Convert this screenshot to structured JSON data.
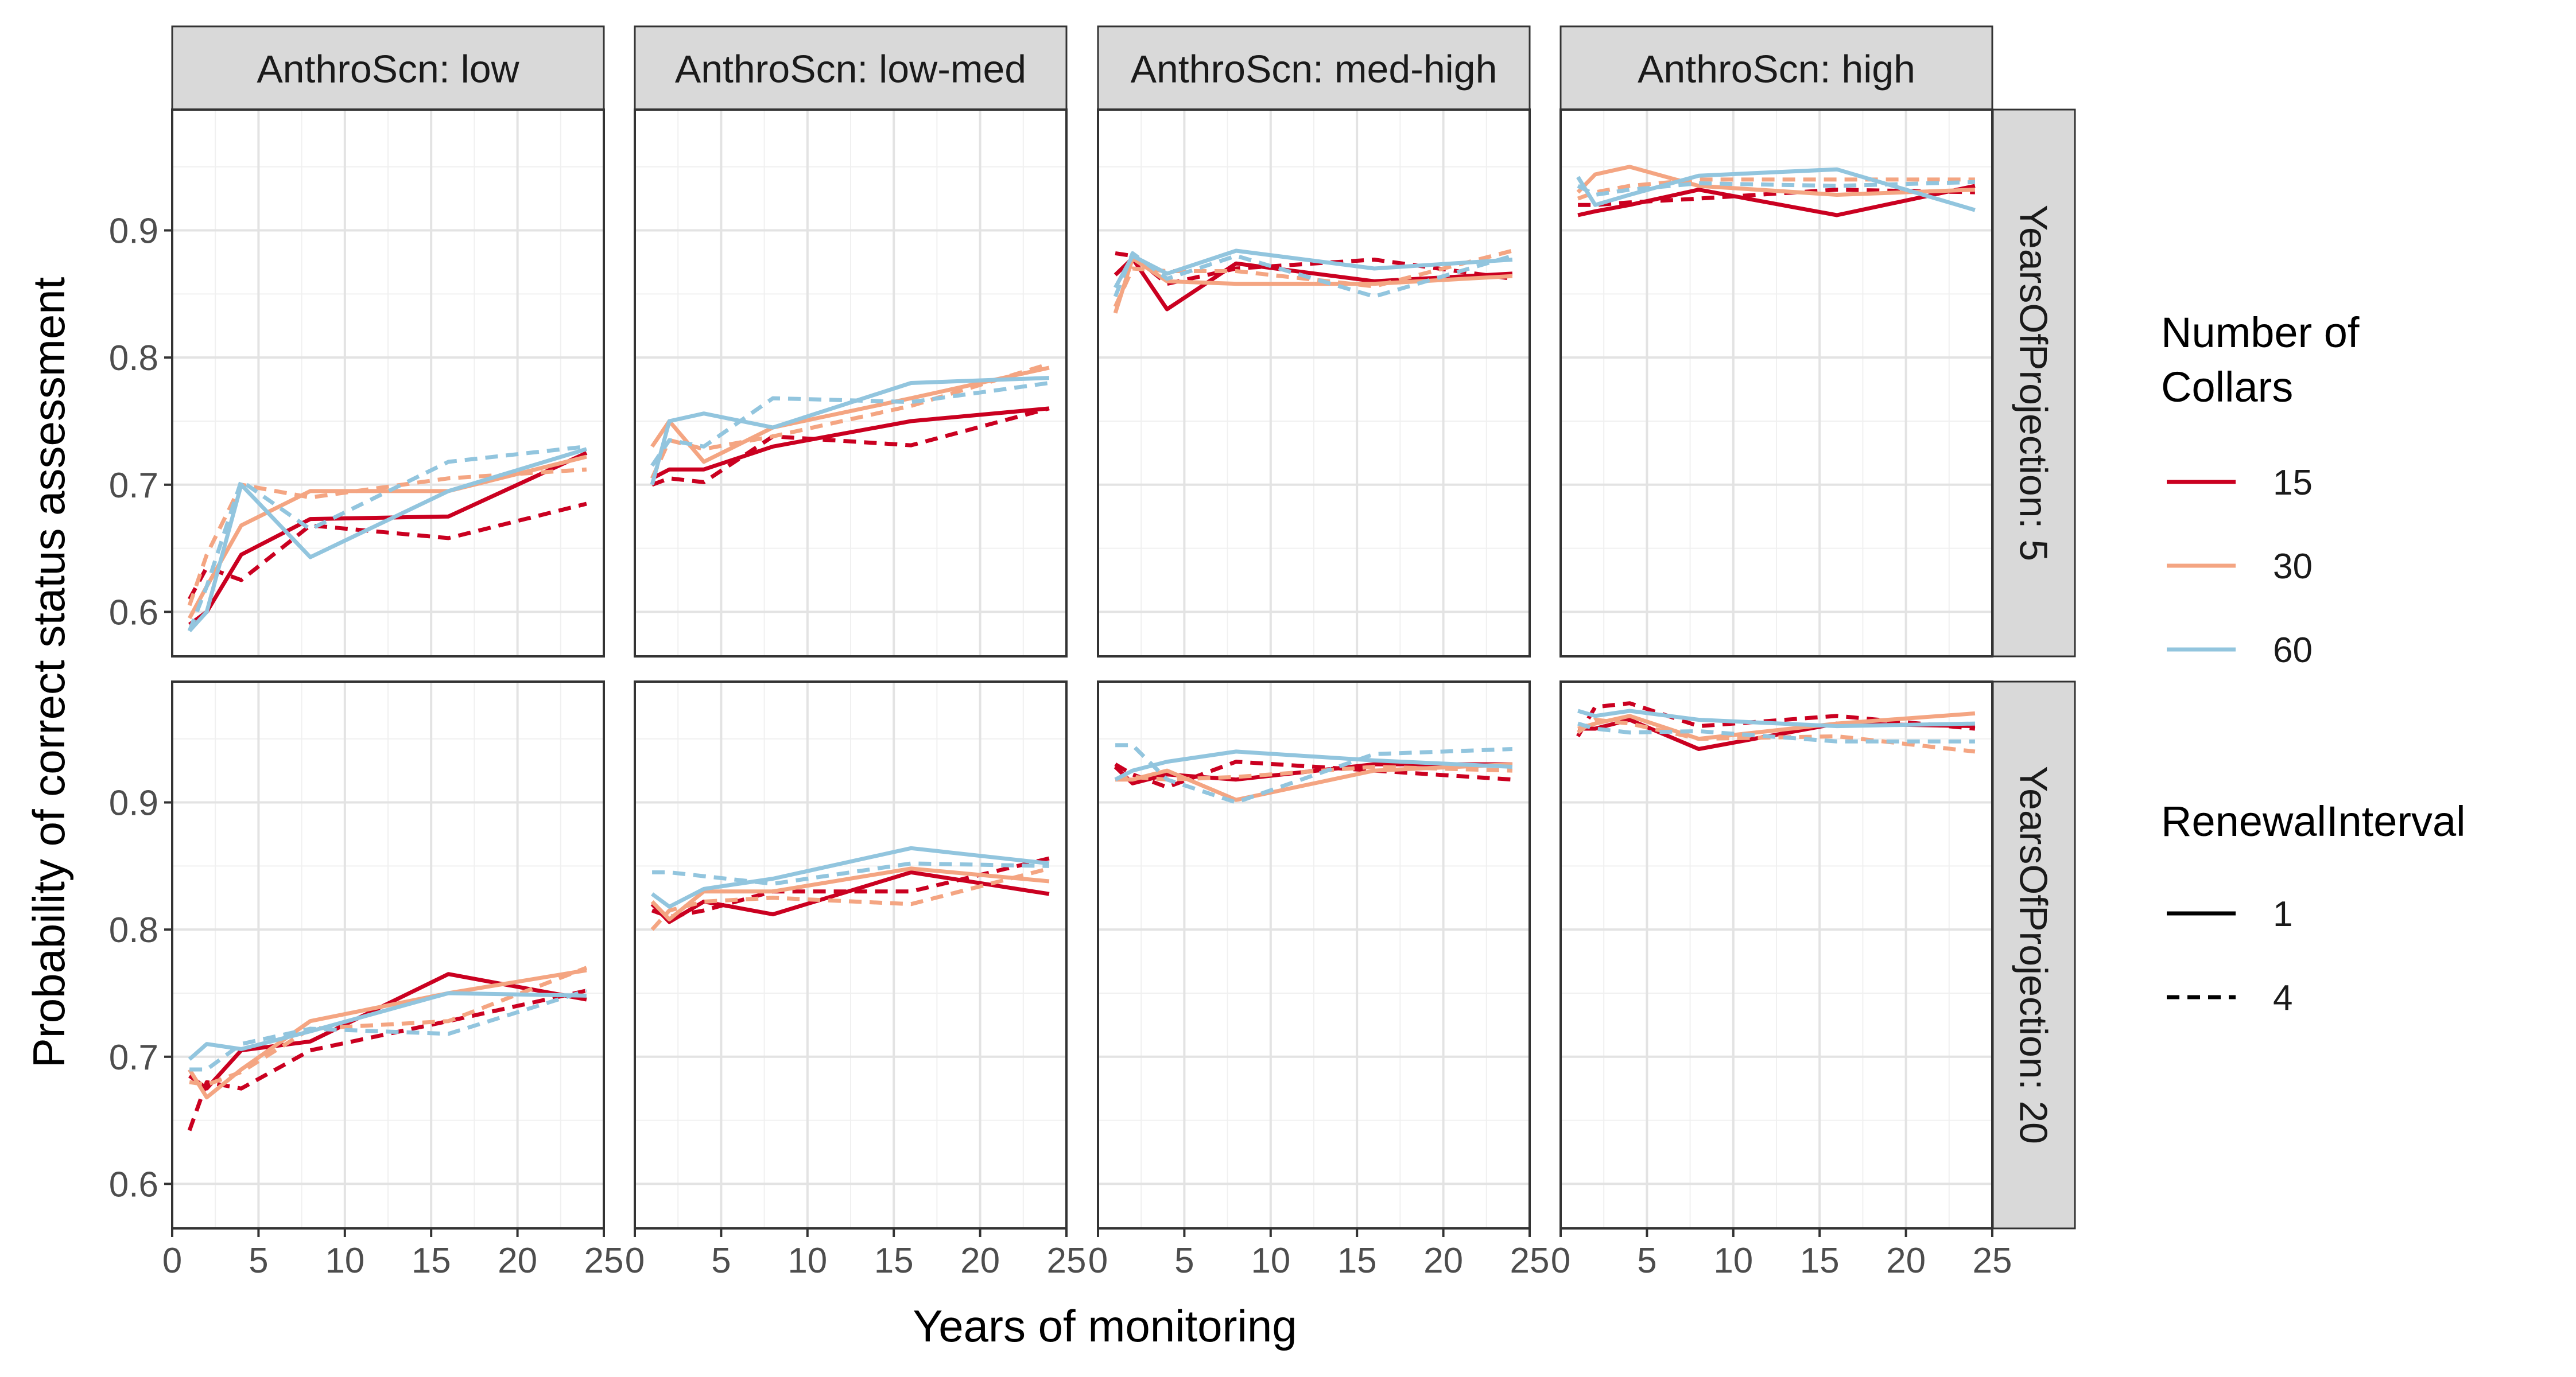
{
  "chart_data": {
    "type": "line",
    "layout": "facet-grid",
    "xlabel": "Years of monitoring",
    "ylabel": "Probability of correct status assessment",
    "x_ticks": [
      0,
      5,
      10,
      15,
      20,
      25
    ],
    "y_ticks": [
      0.6,
      0.7,
      0.8,
      0.9
    ],
    "xlim": [
      0,
      25
    ],
    "ylim": [
      0.565,
      0.995
    ],
    "grid": true,
    "col_facets": [
      "AnthroScn: low",
      "AnthroScn: low-med",
      "AnthroScn: med-high",
      "AnthroScn: high"
    ],
    "row_facets": [
      "YearsOfProjection: 5",
      "YearsOfProjection: 20"
    ],
    "x": [
      1,
      2,
      4,
      8,
      16,
      24
    ],
    "legend": {
      "position": "right",
      "color_title": "Number of\n Collars",
      "color_items": [
        {
          "label": "15",
          "color": "#ca0020"
        },
        {
          "label": "30",
          "color": "#f4a582"
        },
        {
          "label": "60",
          "color": "#92c5de"
        }
      ],
      "linetype_title": "RenewalInterval",
      "linetype_items": [
        {
          "label": "1",
          "dash": "solid"
        },
        {
          "label": "4",
          "dash": "dashed"
        }
      ]
    },
    "panels": [
      {
        "row": 0,
        "col": 0,
        "series": [
          {
            "collars": "15",
            "interval": "1",
            "y": [
              0.59,
              0.6,
              0.645,
              0.673,
              0.675,
              0.725
            ]
          },
          {
            "collars": "15",
            "interval": "4",
            "y": [
              0.61,
              0.635,
              0.625,
              0.668,
              0.658,
              0.685
            ]
          },
          {
            "collars": "30",
            "interval": "1",
            "y": [
              0.595,
              0.62,
              0.668,
              0.695,
              0.695,
              0.722
            ]
          },
          {
            "collars": "30",
            "interval": "4",
            "y": [
              0.605,
              0.645,
              0.7,
              0.69,
              0.705,
              0.712
            ]
          },
          {
            "collars": "60",
            "interval": "1",
            "y": [
              0.585,
              0.6,
              0.7,
              0.643,
              0.695,
              0.728
            ]
          },
          {
            "collars": "60",
            "interval": "4",
            "y": [
              0.585,
              0.62,
              0.703,
              0.665,
              0.718,
              0.73
            ]
          }
        ]
      },
      {
        "row": 0,
        "col": 1,
        "series": [
          {
            "collars": "15",
            "interval": "1",
            "y": [
              0.705,
              0.712,
              0.712,
              0.73,
              0.75,
              0.76
            ]
          },
          {
            "collars": "15",
            "interval": "4",
            "y": [
              0.7,
              0.705,
              0.702,
              0.738,
              0.731,
              0.76
            ]
          },
          {
            "collars": "30",
            "interval": "1",
            "y": [
              0.73,
              0.75,
              0.718,
              0.745,
              0.768,
              0.792
            ]
          },
          {
            "collars": "30",
            "interval": "4",
            "y": [
              0.705,
              0.735,
              0.728,
              0.738,
              0.762,
              0.795
            ]
          },
          {
            "collars": "60",
            "interval": "1",
            "y": [
              0.7,
              0.75,
              0.756,
              0.745,
              0.78,
              0.784
            ]
          },
          {
            "collars": "60",
            "interval": "4",
            "y": [
              0.715,
              0.735,
              0.73,
              0.768,
              0.765,
              0.78
            ]
          }
        ]
      },
      {
        "row": 0,
        "col": 2,
        "series": [
          {
            "collars": "15",
            "interval": "1",
            "y": [
              0.865,
              0.878,
              0.838,
              0.874,
              0.86,
              0.866
            ]
          },
          {
            "collars": "15",
            "interval": "4",
            "y": [
              0.882,
              0.88,
              0.858,
              0.87,
              0.877,
              0.862
            ]
          },
          {
            "collars": "30",
            "interval": "1",
            "y": [
              0.835,
              0.878,
              0.86,
              0.858,
              0.858,
              0.864
            ]
          },
          {
            "collars": "30",
            "interval": "4",
            "y": [
              0.84,
              0.87,
              0.868,
              0.868,
              0.856,
              0.884
            ]
          },
          {
            "collars": "60",
            "interval": "1",
            "y": [
              0.855,
              0.88,
              0.866,
              0.884,
              0.87,
              0.877
            ]
          },
          {
            "collars": "60",
            "interval": "4",
            "y": [
              0.848,
              0.882,
              0.862,
              0.88,
              0.848,
              0.88
            ]
          }
        ]
      },
      {
        "row": 0,
        "col": 3,
        "series": [
          {
            "collars": "15",
            "interval": "1",
            "y": [
              0.912,
              0.915,
              0.92,
              0.932,
              0.912,
              0.935
            ]
          },
          {
            "collars": "15",
            "interval": "4",
            "y": [
              0.92,
              0.92,
              0.922,
              0.925,
              0.932,
              0.93
            ]
          },
          {
            "collars": "30",
            "interval": "1",
            "y": [
              0.93,
              0.944,
              0.95,
              0.935,
              0.928,
              0.932
            ]
          },
          {
            "collars": "30",
            "interval": "4",
            "y": [
              0.925,
              0.93,
              0.935,
              0.94,
              0.94,
              0.94
            ]
          },
          {
            "collars": "60",
            "interval": "1",
            "y": [
              0.942,
              0.92,
              0.928,
              0.943,
              0.948,
              0.916
            ]
          },
          {
            "collars": "60",
            "interval": "4",
            "y": [
              0.935,
              0.928,
              0.932,
              0.937,
              0.935,
              0.938
            ]
          }
        ]
      },
      {
        "row": 1,
        "col": 0,
        "series": [
          {
            "collars": "15",
            "interval": "1",
            "y": [
              0.685,
              0.675,
              0.705,
              0.712,
              0.765,
              0.745
            ]
          },
          {
            "collars": "15",
            "interval": "4",
            "y": [
              0.642,
              0.68,
              0.675,
              0.705,
              0.728,
              0.752
            ]
          },
          {
            "collars": "30",
            "interval": "1",
            "y": [
              0.69,
              0.668,
              0.69,
              0.728,
              0.75,
              0.768
            ]
          },
          {
            "collars": "30",
            "interval": "4",
            "y": [
              0.68,
              0.678,
              0.688,
              0.722,
              0.728,
              0.77
            ]
          },
          {
            "collars": "60",
            "interval": "1",
            "y": [
              0.698,
              0.71,
              0.706,
              0.72,
              0.75,
              0.748
            ]
          },
          {
            "collars": "60",
            "interval": "4",
            "y": [
              0.69,
              0.69,
              0.71,
              0.722,
              0.718,
              0.752
            ]
          }
        ]
      },
      {
        "row": 1,
        "col": 1,
        "series": [
          {
            "collars": "15",
            "interval": "1",
            "y": [
              0.82,
              0.806,
              0.822,
              0.812,
              0.845,
              0.828
            ]
          },
          {
            "collars": "15",
            "interval": "4",
            "y": [
              0.815,
              0.81,
              0.815,
              0.83,
              0.83,
              0.856
            ]
          },
          {
            "collars": "30",
            "interval": "1",
            "y": [
              0.822,
              0.808,
              0.83,
              0.83,
              0.848,
              0.838
            ]
          },
          {
            "collars": "30",
            "interval": "4",
            "y": [
              0.8,
              0.815,
              0.822,
              0.825,
              0.82,
              0.848
            ]
          },
          {
            "collars": "60",
            "interval": "1",
            "y": [
              0.828,
              0.818,
              0.832,
              0.84,
              0.864,
              0.852
            ]
          },
          {
            "collars": "60",
            "interval": "4",
            "y": [
              0.845,
              0.845,
              0.842,
              0.836,
              0.852,
              0.85
            ]
          }
        ]
      },
      {
        "row": 1,
        "col": 2,
        "series": [
          {
            "collars": "15",
            "interval": "1",
            "y": [
              0.928,
              0.915,
              0.922,
              0.918,
              0.93,
              0.93
            ]
          },
          {
            "collars": "15",
            "interval": "4",
            "y": [
              0.93,
              0.922,
              0.912,
              0.932,
              0.925,
              0.918
            ]
          },
          {
            "collars": "30",
            "interval": "1",
            "y": [
              0.918,
              0.918,
              0.925,
              0.902,
              0.925,
              0.93
            ]
          },
          {
            "collars": "30",
            "interval": "4",
            "y": [
              0.918,
              0.92,
              0.918,
              0.92,
              0.928,
              0.925
            ]
          },
          {
            "collars": "60",
            "interval": "1",
            "y": [
              0.918,
              0.925,
              0.932,
              0.94,
              0.933,
              0.928
            ]
          },
          {
            "collars": "60",
            "interval": "4",
            "y": [
              0.945,
              0.945,
              0.918,
              0.9,
              0.938,
              0.942
            ]
          }
        ]
      },
      {
        "row": 1,
        "col": 3,
        "series": [
          {
            "collars": "15",
            "interval": "1",
            "y": [
              0.958,
              0.958,
              0.965,
              0.942,
              0.962,
              0.96
            ]
          },
          {
            "collars": "15",
            "interval": "4",
            "y": [
              0.952,
              0.975,
              0.978,
              0.96,
              0.968,
              0.958
            ]
          },
          {
            "collars": "30",
            "interval": "1",
            "y": [
              0.958,
              0.962,
              0.968,
              0.95,
              0.962,
              0.97
            ]
          },
          {
            "collars": "30",
            "interval": "4",
            "y": [
              0.955,
              0.965,
              0.962,
              0.95,
              0.952,
              0.94
            ]
          },
          {
            "collars": "60",
            "interval": "1",
            "y": [
              0.972,
              0.968,
              0.972,
              0.965,
              0.96,
              0.962
            ]
          },
          {
            "collars": "60",
            "interval": "4",
            "y": [
              0.962,
              0.958,
              0.955,
              0.956,
              0.948,
              0.948
            ]
          }
        ]
      }
    ]
  }
}
